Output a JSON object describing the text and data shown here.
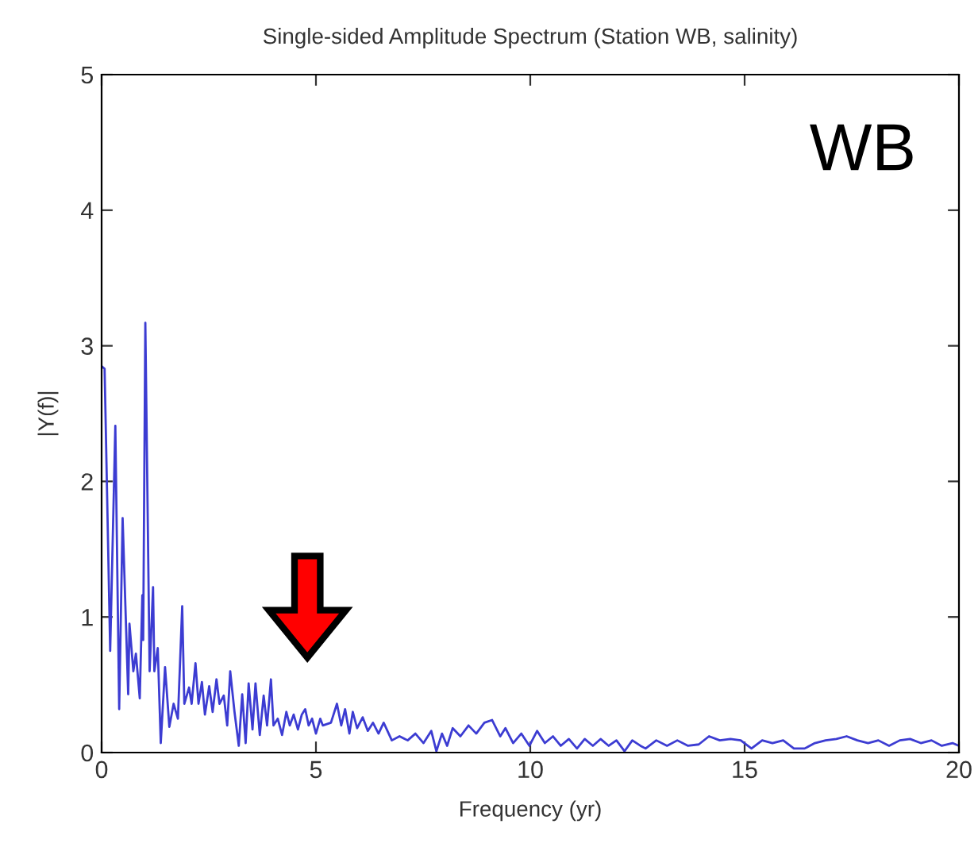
{
  "chart_data": {
    "type": "line",
    "title": "Single-sided Amplitude Spectrum (Station WB, salinity)",
    "xlabel": "Frequency (yr)",
    "ylabel": "|Y(f)|",
    "annotations": [
      "WB"
    ],
    "xlim": [
      0,
      20
    ],
    "xticks": [
      0,
      5,
      10,
      15,
      20
    ],
    "ylim": [
      0,
      5
    ],
    "yticks": [
      0,
      1,
      2,
      3,
      4,
      5
    ],
    "grid": false,
    "legend": false,
    "series": [
      {
        "color": "#3c3cd2",
        "x": [
          0,
          0.07,
          0.2,
          0.32,
          0.41,
          0.49,
          0.62,
          0.65,
          0.74,
          0.8,
          0.89,
          0.95,
          0.97,
          1.02,
          1.12,
          1.2,
          1.23,
          1.31,
          1.38,
          1.48,
          1.58,
          1.68,
          1.78,
          1.88,
          1.93,
          2.04,
          2.1,
          2.19,
          2.26,
          2.34,
          2.41,
          2.51,
          2.59,
          2.68,
          2.75,
          2.85,
          2.93,
          3.0,
          3.1,
          3.2,
          3.28,
          3.36,
          3.43,
          3.52,
          3.59,
          3.69,
          3.78,
          3.86,
          3.95,
          4.01,
          4.11,
          4.21,
          4.31,
          4.39,
          4.48,
          4.58,
          4.67,
          4.75,
          4.83,
          4.91,
          5.0,
          5.1,
          5.16,
          5.35,
          5.49,
          5.59,
          5.68,
          5.78,
          5.86,
          5.96,
          6.09,
          6.21,
          6.33,
          6.46,
          6.58,
          6.77,
          6.95,
          7.14,
          7.32,
          7.51,
          7.69,
          7.81,
          7.94,
          8.06,
          8.19,
          8.37,
          8.56,
          8.74,
          8.93,
          9.11,
          9.3,
          9.42,
          9.6,
          9.79,
          9.98,
          10.16,
          10.34,
          10.53,
          10.71,
          10.9,
          11.09,
          11.27,
          11.46,
          11.64,
          11.83,
          12.01,
          12.2,
          12.38,
          12.57,
          12.69,
          12.94,
          13.19,
          13.43,
          13.68,
          13.93,
          14.17,
          14.42,
          14.67,
          14.91,
          15.16,
          15.41,
          15.65,
          15.9,
          16.15,
          16.4,
          16.64,
          16.89,
          17.14,
          17.38,
          17.63,
          17.88,
          18.12,
          18.37,
          18.62,
          18.86,
          19.11,
          19.36,
          19.6,
          19.85,
          20.0
        ],
        "values": [
          2.85,
          2.83,
          0.75,
          2.41,
          0.32,
          1.73,
          0.43,
          0.95,
          0.6,
          0.73,
          0.4,
          1.16,
          0.83,
          3.17,
          0.6,
          1.22,
          0.6,
          0.77,
          0.07,
          0.63,
          0.19,
          0.36,
          0.25,
          1.08,
          0.36,
          0.48,
          0.36,
          0.66,
          0.36,
          0.52,
          0.28,
          0.49,
          0.3,
          0.54,
          0.36,
          0.42,
          0.2,
          0.6,
          0.3,
          0.05,
          0.43,
          0.07,
          0.51,
          0.17,
          0.51,
          0.13,
          0.42,
          0.2,
          0.54,
          0.2,
          0.25,
          0.13,
          0.3,
          0.2,
          0.28,
          0.17,
          0.28,
          0.32,
          0.2,
          0.25,
          0.14,
          0.25,
          0.2,
          0.22,
          0.36,
          0.2,
          0.32,
          0.14,
          0.3,
          0.18,
          0.26,
          0.16,
          0.22,
          0.14,
          0.22,
          0.09,
          0.12,
          0.09,
          0.14,
          0.07,
          0.16,
          0.01,
          0.14,
          0.05,
          0.18,
          0.12,
          0.2,
          0.14,
          0.22,
          0.24,
          0.12,
          0.18,
          0.07,
          0.14,
          0.05,
          0.16,
          0.07,
          0.12,
          0.05,
          0.1,
          0.03,
          0.1,
          0.05,
          0.1,
          0.05,
          0.09,
          0.01,
          0.09,
          0.05,
          0.03,
          0.09,
          0.05,
          0.09,
          0.05,
          0.06,
          0.12,
          0.09,
          0.1,
          0.09,
          0.03,
          0.09,
          0.07,
          0.09,
          0.03,
          0.03,
          0.07,
          0.09,
          0.1,
          0.12,
          0.09,
          0.07,
          0.09,
          0.05,
          0.09,
          0.1,
          0.07,
          0.09,
          0.05,
          0.07,
          0.05
        ]
      }
    ]
  }
}
